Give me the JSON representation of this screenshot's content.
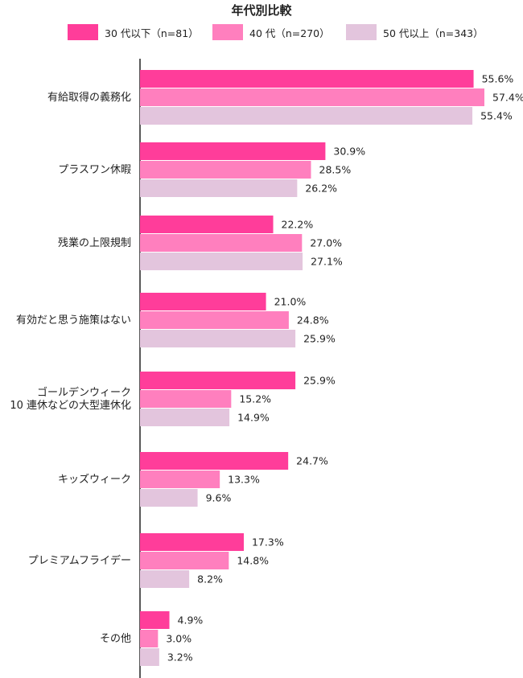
{
  "chart_data": {
    "type": "bar",
    "orientation": "horizontal",
    "title": "年代別比較",
    "categories": [
      [
        "有給取得の義務化"
      ],
      [
        "プラスワン休暇"
      ],
      [
        "残業の上限規制"
      ],
      [
        "有効だと思う施策はない"
      ],
      [
        "ゴールデンウィーク",
        "10 連休などの大型連休化"
      ],
      [
        "キッズウィーク"
      ],
      [
        "プレミアムフライデー"
      ],
      [
        "その他"
      ]
    ],
    "series": [
      {
        "name": "30 代以下（n=81）",
        "color": "#ff3d9a",
        "values": [
          55.6,
          30.9,
          22.2,
          21.0,
          25.9,
          24.7,
          17.3,
          4.9
        ],
        "labels": [
          "55.6%",
          "30.9%",
          "22.2%",
          "21.0%",
          "25.9%",
          "24.7%",
          "17.3%",
          "4.9%"
        ]
      },
      {
        "name": "40 代（n=270）",
        "color": "#ff7fbe",
        "values": [
          57.4,
          28.5,
          27.0,
          24.8,
          15.2,
          13.3,
          14.8,
          3.0
        ],
        "labels": [
          "57.4%",
          "28.5%",
          "27.0%",
          "24.8%",
          "15.2%",
          "13.3%",
          "14.8%",
          "3.0%"
        ]
      },
      {
        "name": "50 代以上（n=343）",
        "color": "#e3c5dd",
        "values": [
          55.4,
          26.2,
          27.1,
          25.9,
          14.9,
          9.6,
          8.2,
          3.2
        ],
        "labels": [
          "55.4%",
          "26.2%",
          "27.1%",
          "25.9%",
          "14.9%",
          "9.6%",
          "8.2%",
          "3.2%"
        ]
      }
    ],
    "xlim": [
      0,
      60
    ],
    "grid": false,
    "legend_position": "top"
  }
}
